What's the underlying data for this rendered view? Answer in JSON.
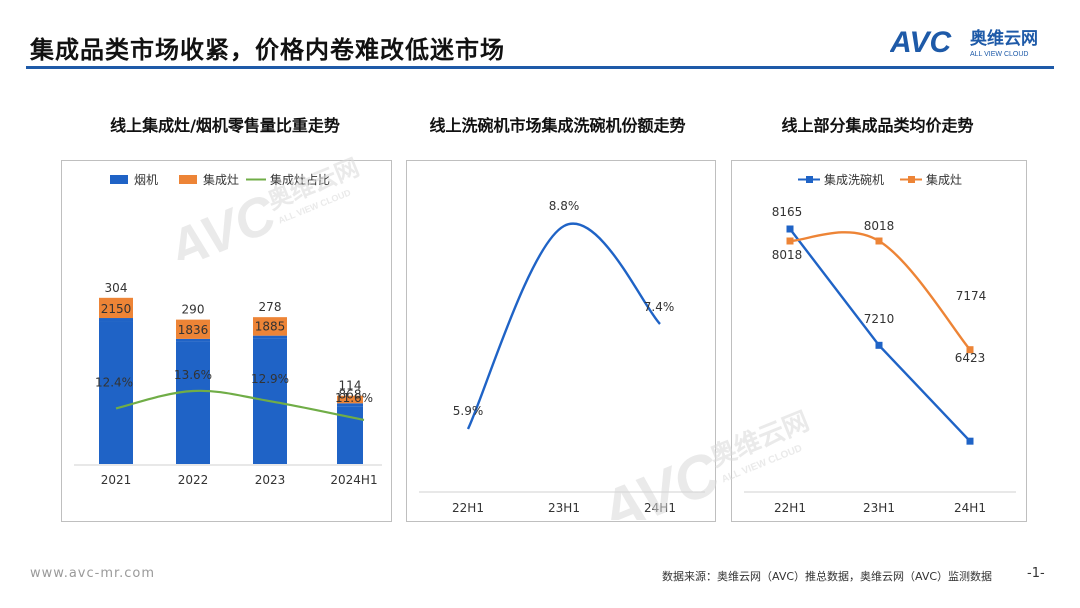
{
  "page": {
    "title": "集成品类市场收紧，价格内卷难改低迷市场",
    "footer_url": "www.avc-mr.com",
    "footer_source": "数据来源：奥维云网（AVC）推总数据，奥维云网（AVC）监测数据",
    "page_number": "-1-"
  },
  "brand": {
    "wordmark": "AVC",
    "cn_name": "奥维云网",
    "tagline": "ALL VIEW CLOUD",
    "color": "#1e5aa8"
  },
  "colors": {
    "blue": "#1f63c6",
    "orange": "#ed8436",
    "green": "#70ad47",
    "line_blue": "#1f63c6"
  },
  "chart_data": [
    {
      "type": "bar",
      "title": "线上集成灶/烟机零售量比重走势",
      "categories": [
        "2021",
        "2022",
        "2023",
        "2024H1"
      ],
      "series": [
        {
          "name": "烟机",
          "values": [
            2150,
            1836,
            1885,
            868
          ]
        },
        {
          "name": "集成灶",
          "values": [
            304,
            290,
            278,
            114
          ]
        },
        {
          "name": "集成灶占比",
          "values": [
            12.4,
            13.6,
            12.9,
            11.6
          ],
          "labels": [
            "12.4%",
            "13.6%",
            "12.9%",
            "11.6%"
          ]
        }
      ],
      "legend": "top"
    },
    {
      "type": "line",
      "title": "线上洗碗机市场集成洗碗机份额走势",
      "categories": [
        "22H1",
        "23H1",
        "24H1"
      ],
      "series": [
        {
          "values": [
            5.9,
            8.8,
            7.4
          ],
          "labels": [
            "5.9%",
            "8.8%",
            "7.4%"
          ]
        }
      ]
    },
    {
      "type": "line",
      "title": "线上部分集成品类均价走势",
      "categories": [
        "22H1",
        "23H1",
        "24H1"
      ],
      "series": [
        {
          "name": "集成洗碗机",
          "values": [
            8165,
            7210,
            6423
          ]
        },
        {
          "name": "集成灶",
          "values": [
            8018,
            8018,
            7174
          ]
        }
      ],
      "legend": "top"
    }
  ]
}
